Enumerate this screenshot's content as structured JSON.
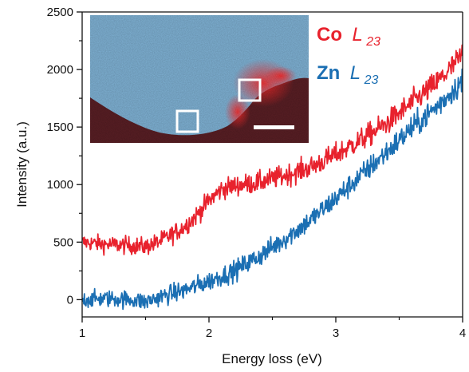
{
  "chart_data": {
    "type": "line",
    "xlabel": "Energy loss (eV)",
    "ylabel": "Intensity (a.u.)",
    "xlim": [
      1,
      4
    ],
    "ylim": [
      -150,
      2500
    ],
    "x_ticks": [
      1,
      2,
      3,
      4
    ],
    "y_ticks": [
      0,
      500,
      1000,
      1500,
      2000,
      2500
    ],
    "grid": false,
    "legend_placement": "top-right",
    "series": [
      {
        "name": "Co L23",
        "element": "Co",
        "edge": "L",
        "edge_subscript": "23",
        "color": "#e8222d",
        "x": [
          1.0,
          1.2,
          1.4,
          1.5,
          1.6,
          1.7,
          1.8,
          1.9,
          2.0,
          2.1,
          2.2,
          2.4,
          2.6,
          2.8,
          3.0,
          3.2,
          3.4,
          3.6,
          3.8,
          3.9,
          4.0
        ],
        "values": [
          500,
          480,
          470,
          460,
          500,
          560,
          630,
          730,
          860,
          960,
          990,
          1020,
          1080,
          1150,
          1260,
          1390,
          1530,
          1710,
          1890,
          2000,
          2130
        ]
      },
      {
        "name": "Zn L23",
        "element": "Zn",
        "edge": "L",
        "edge_subscript": "23",
        "color": "#1b6fb3",
        "x": [
          1.0,
          1.2,
          1.4,
          1.5,
          1.6,
          1.8,
          2.0,
          2.2,
          2.4,
          2.6,
          2.8,
          3.0,
          3.2,
          3.4,
          3.6,
          3.8,
          3.9,
          4.0
        ],
        "values": [
          0,
          10,
          0,
          -20,
          20,
          80,
          160,
          250,
          380,
          530,
          690,
          880,
          1080,
          1280,
          1490,
          1680,
          1790,
          1900
        ]
      }
    ],
    "inset": {
      "type": "image",
      "description_colors": {
        "matrix": "#7fb0d4",
        "region": "#e8322e",
        "background": "#5a1e24"
      },
      "markers": [
        "square",
        "square"
      ],
      "scale_bar": true
    }
  }
}
